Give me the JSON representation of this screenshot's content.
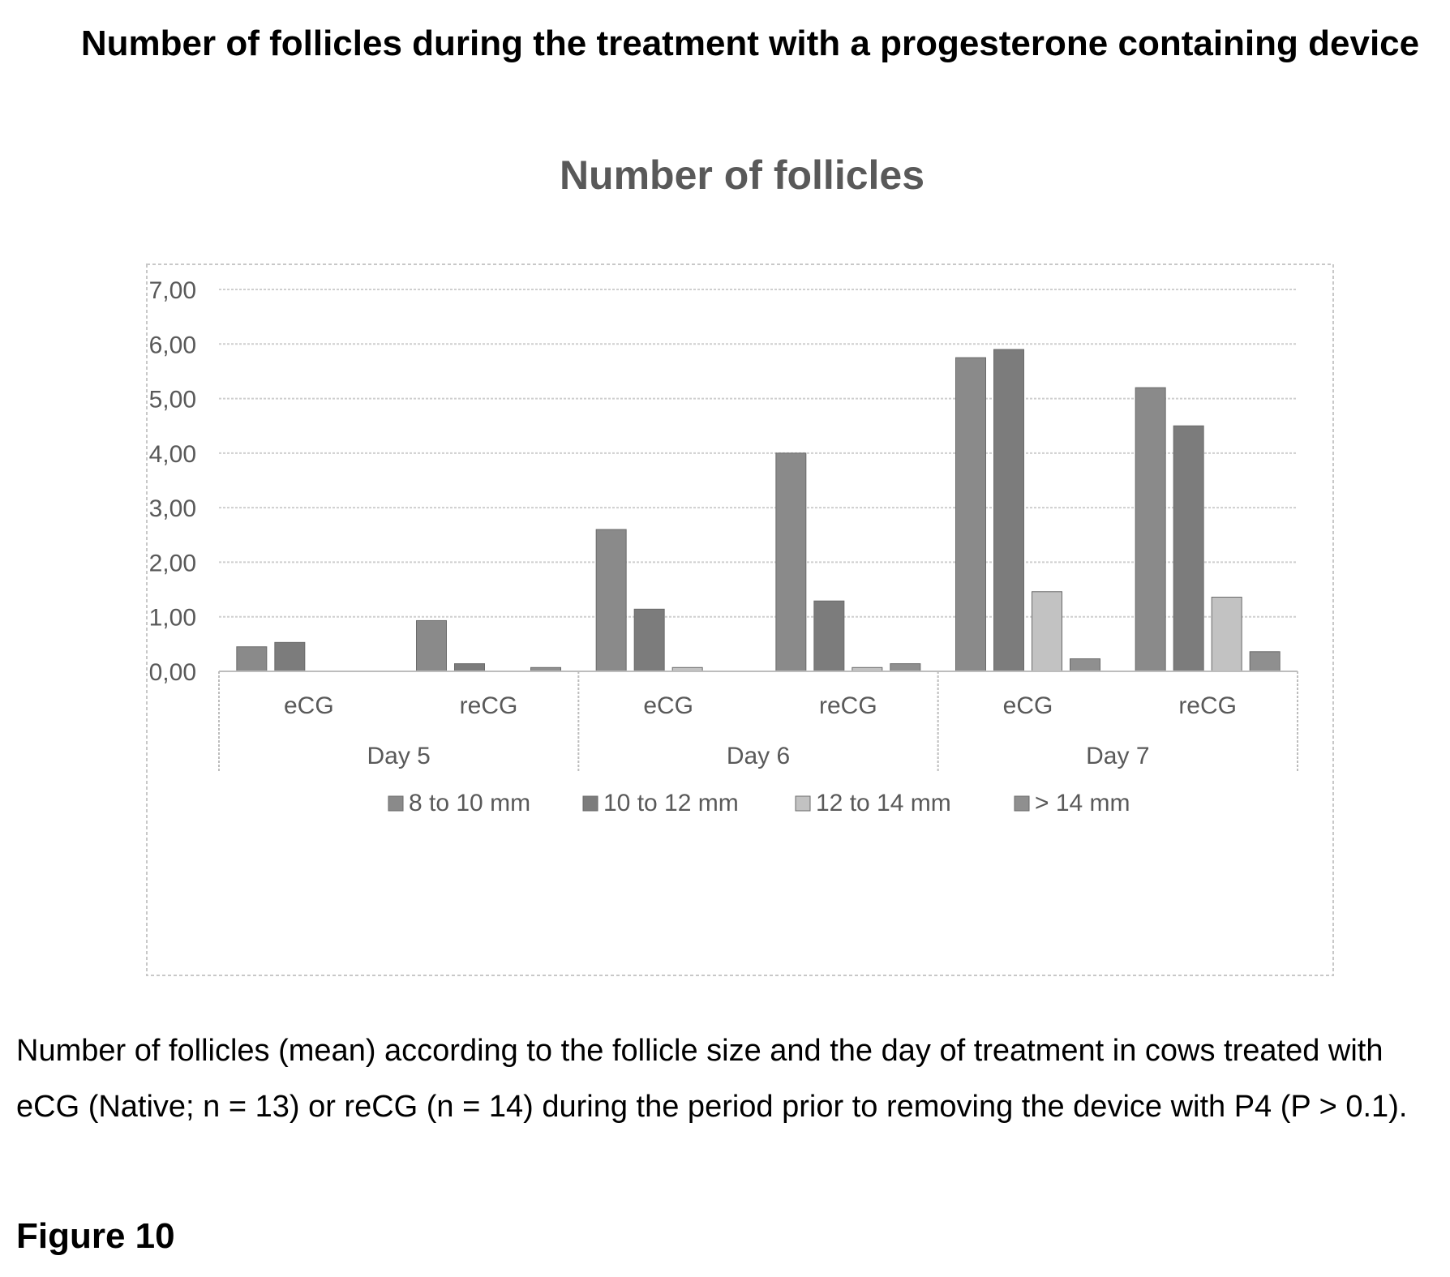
{
  "page": {
    "heading": "Number of follicles during the treatment with a progesterone containing device",
    "caption": "Number of follicles (mean) according to the follicle size and the day of treatment in cows treated with eCG (Native; n = 13) or reCG (n = 14) during the period prior to removing the device with P4 (P > 0.1).",
    "figure_label": "Figure 10"
  },
  "chart_data": {
    "type": "bar",
    "title": "Number of follicles",
    "xlabel": "",
    "ylabel": "",
    "ylim": [
      0,
      7
    ],
    "y_ticks": [
      "0,00",
      "1,00",
      "2,00",
      "3,00",
      "4,00",
      "5,00",
      "6,00",
      "7,00"
    ],
    "groups": [
      "Day 5",
      "Day 6",
      "Day 7"
    ],
    "categories": [
      "eCG",
      "reCG",
      "eCG",
      "reCG",
      "eCG",
      "reCG"
    ],
    "series": [
      {
        "name": "8 to 10 mm",
        "color": "#8a8a8a",
        "values": [
          0.45,
          0.93,
          2.6,
          4.0,
          5.75,
          5.2
        ]
      },
      {
        "name": "10 to 12 mm",
        "color": "#7c7c7c",
        "values": [
          0.53,
          0.14,
          1.14,
          1.29,
          5.9,
          4.5
        ]
      },
      {
        "name": "12 to 14 mm",
        "color": "#c2c2c2",
        "values": [
          0.0,
          0.0,
          0.07,
          0.07,
          1.46,
          1.36
        ]
      },
      {
        "name": "> 14 mm",
        "color": "#8f8f8f",
        "values": [
          0.0,
          0.07,
          0.0,
          0.14,
          0.23,
          0.36
        ]
      }
    ],
    "grid": true,
    "legend_position": "bottom"
  }
}
